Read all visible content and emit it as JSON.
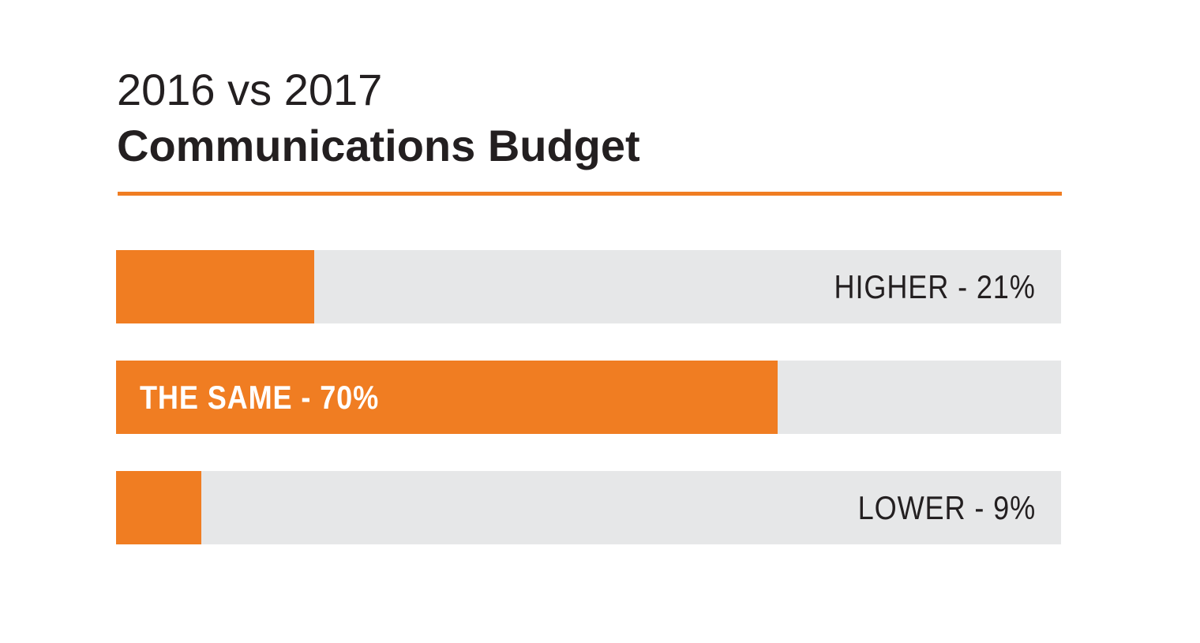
{
  "title": {
    "line1": "2016 vs 2017",
    "line2": "Communications Budget"
  },
  "colors": {
    "accent": "#f07d22",
    "track": "#e6e7e8",
    "text": "#231f20",
    "inside_label": "#ffffff"
  },
  "chart_data": {
    "type": "bar",
    "orientation": "horizontal",
    "categories": [
      "HIGHER",
      "THE SAME",
      "LOWER"
    ],
    "values": [
      21,
      70,
      9
    ],
    "unit": "%",
    "xlim": [
      0,
      100
    ],
    "labels": [
      "HIGHER - 21%",
      "THE SAME - 70%",
      "LOWER - 9%"
    ],
    "label_inside_bar": [
      false,
      true,
      false
    ],
    "grid": false,
    "legend": "none"
  }
}
